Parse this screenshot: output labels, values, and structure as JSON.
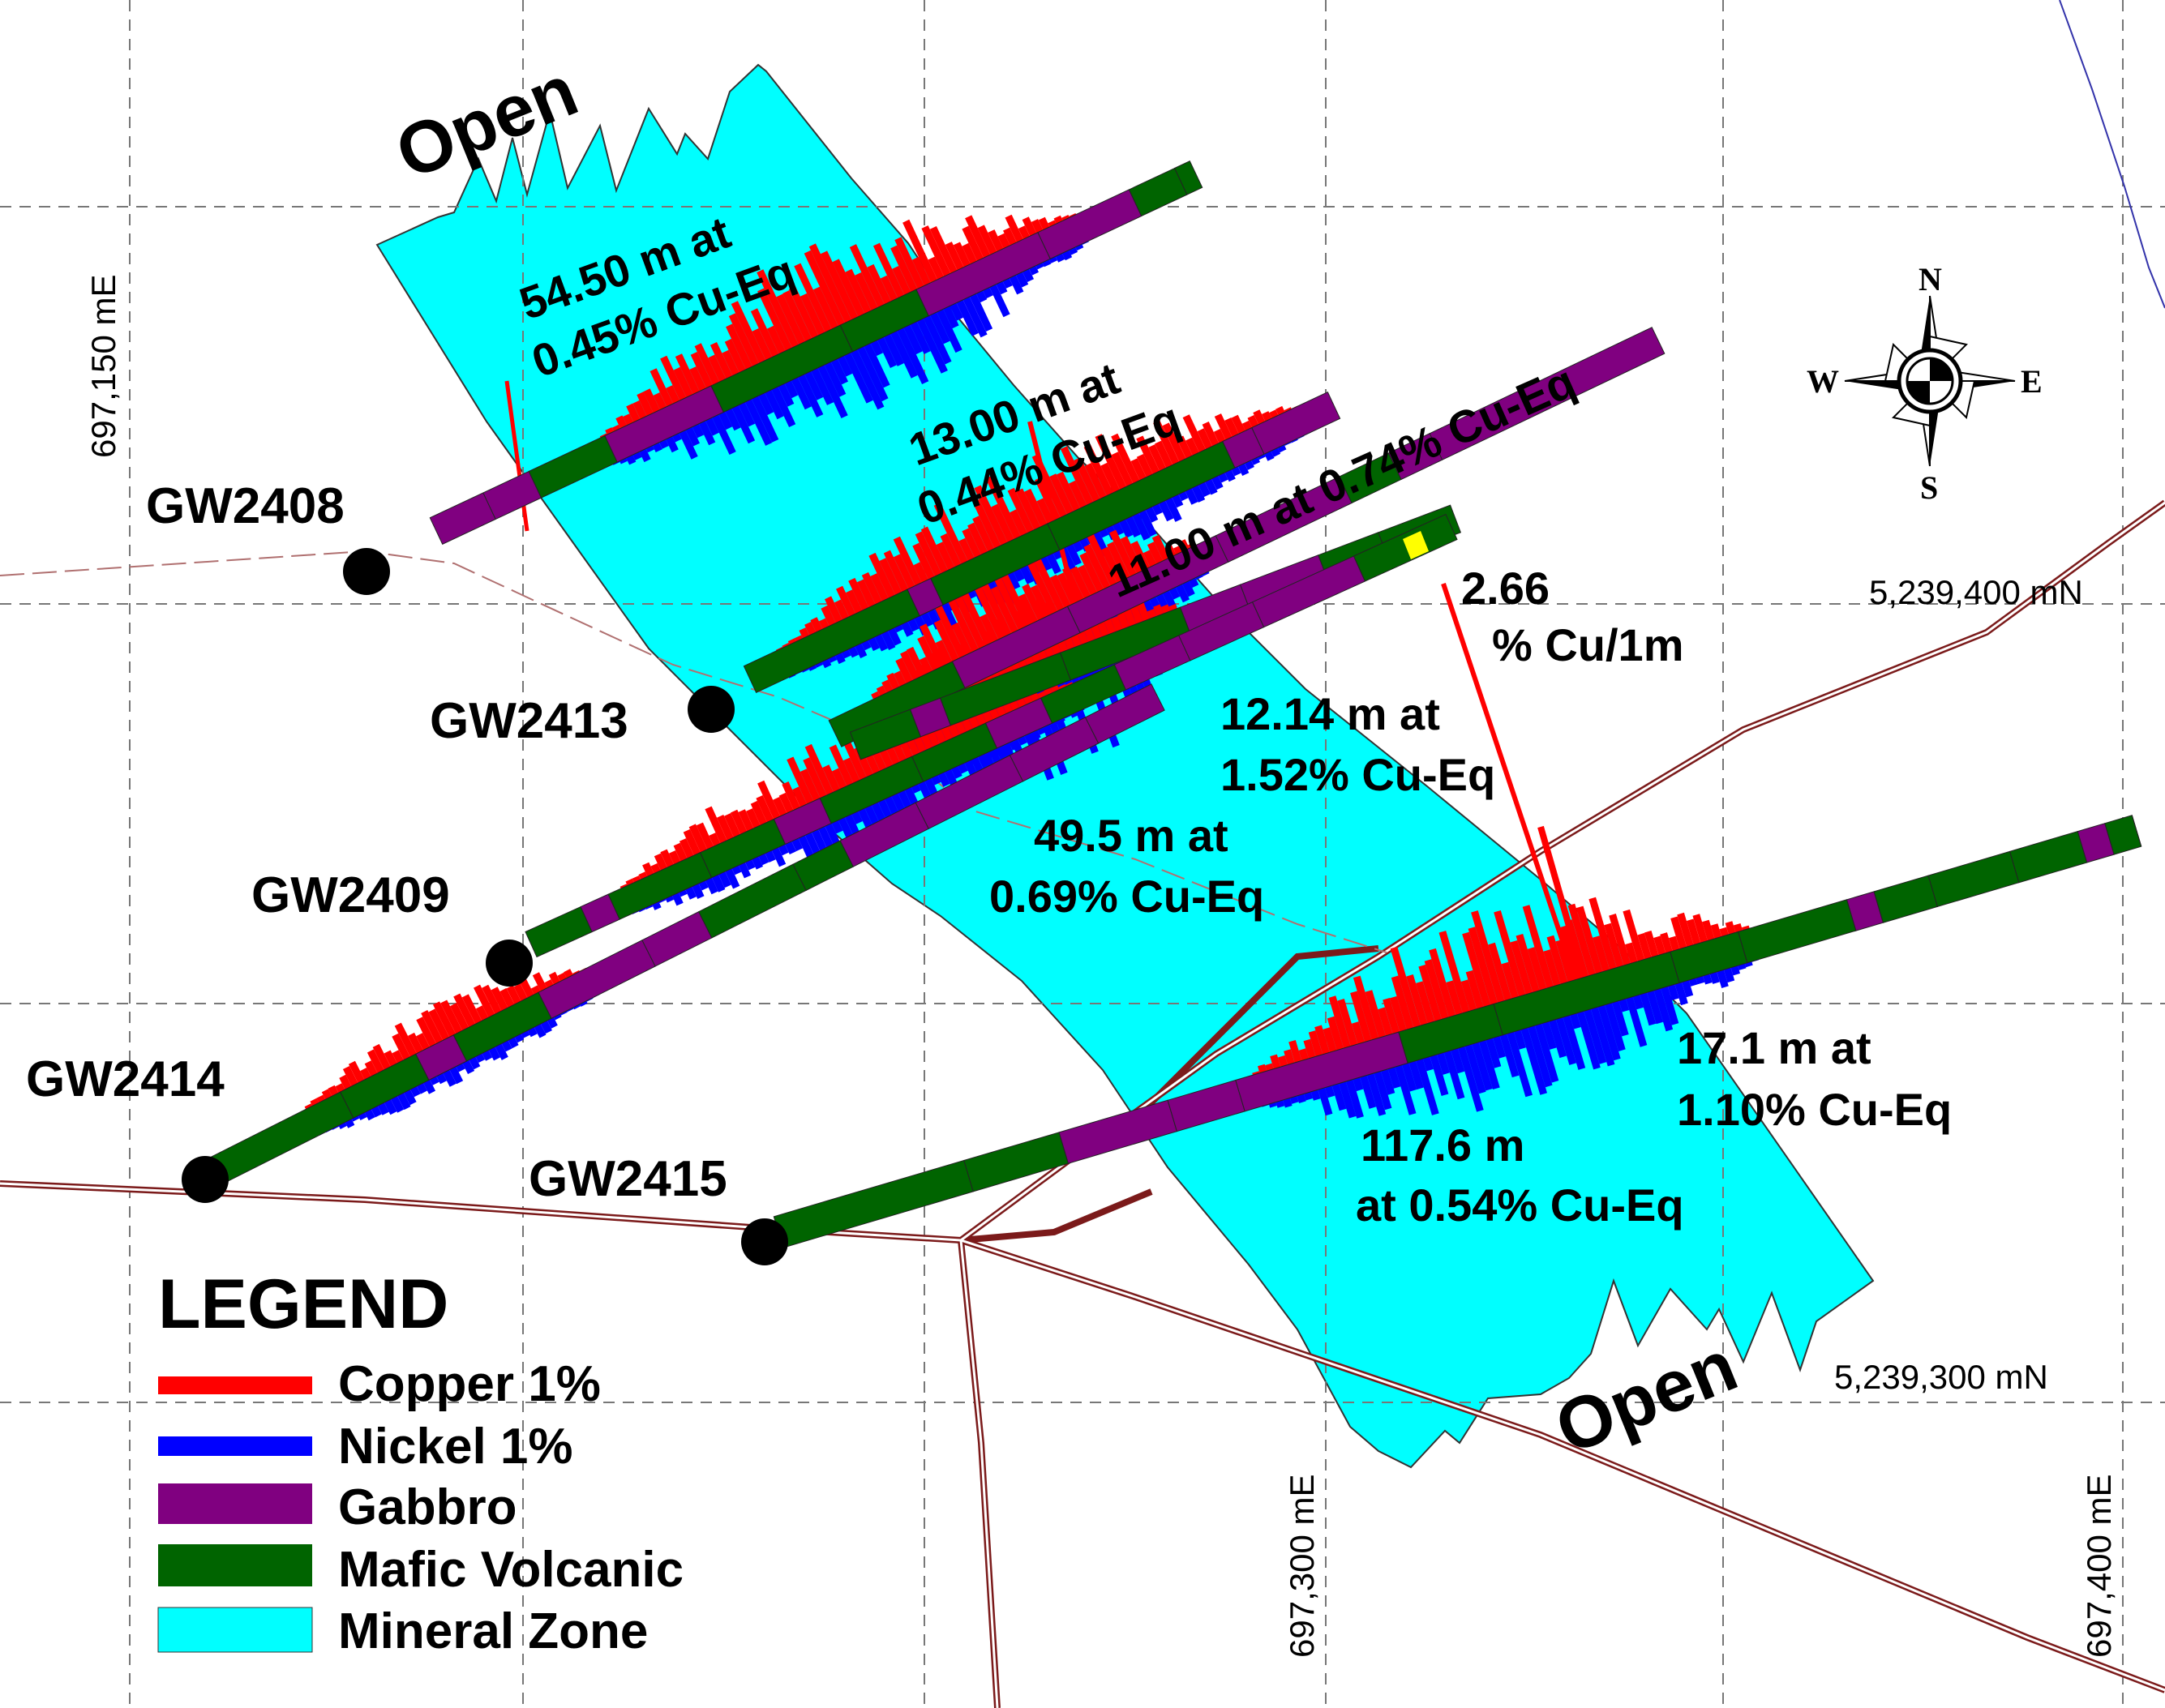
{
  "colors": {
    "copper": "#ff0000",
    "nickel": "#0000ff",
    "gabbro": "#800080",
    "mafic_volcanic": "#006400",
    "mineral_zone": "#00ffff",
    "road": "#7b1a1a",
    "grid": "#666666",
    "collar": "#000000"
  },
  "grid_labels": {
    "e_150": "697,150 mE",
    "e_300": "697,300 mE",
    "e_400": "697,400 mE",
    "n_400": "5,239,400 mN",
    "n_300": "5,239,300 mN"
  },
  "open_labels": {
    "north": "Open",
    "south": "Open"
  },
  "drill_holes": [
    {
      "id": "GW2408"
    },
    {
      "id": "GW2413"
    },
    {
      "id": "GW2409"
    },
    {
      "id": "GW2414"
    },
    {
      "id": "GW2415"
    }
  ],
  "intercepts": [
    {
      "line1": "54.50 m at",
      "line2": "0.45% Cu-Eq"
    },
    {
      "line1": "13.00 m at",
      "line2": "0.44% Cu-Eq"
    },
    {
      "line1": "11.00 m at 0.74% Cu-Eq"
    },
    {
      "line1": "2.66",
      "line2": "% Cu/1m"
    },
    {
      "line1": "12.14 m at",
      "line2": "1.52% Cu-Eq"
    },
    {
      "line1": "49.5 m at",
      "line2": "0.69% Cu-Eq"
    },
    {
      "line1": "17.1 m at",
      "line2": "1.10% Cu-Eq"
    },
    {
      "line1": "117.6 m",
      "line2": "at 0.54% Cu-Eq"
    }
  ],
  "compass": {
    "north": "N",
    "south": "S",
    "east": "E",
    "west": "W",
    "icon": "compass-rose-icon"
  },
  "legend": {
    "title": "LEGEND",
    "items": [
      {
        "label": "Copper 1%",
        "color": "#ff0000"
      },
      {
        "label": "Nickel 1%",
        "color": "#0000ff"
      },
      {
        "label": "Gabbro",
        "color": "#800080"
      },
      {
        "label": "Mafic Volcanic",
        "color": "#006400"
      },
      {
        "label": "Mineral Zone",
        "color": "#00ffff"
      }
    ]
  }
}
